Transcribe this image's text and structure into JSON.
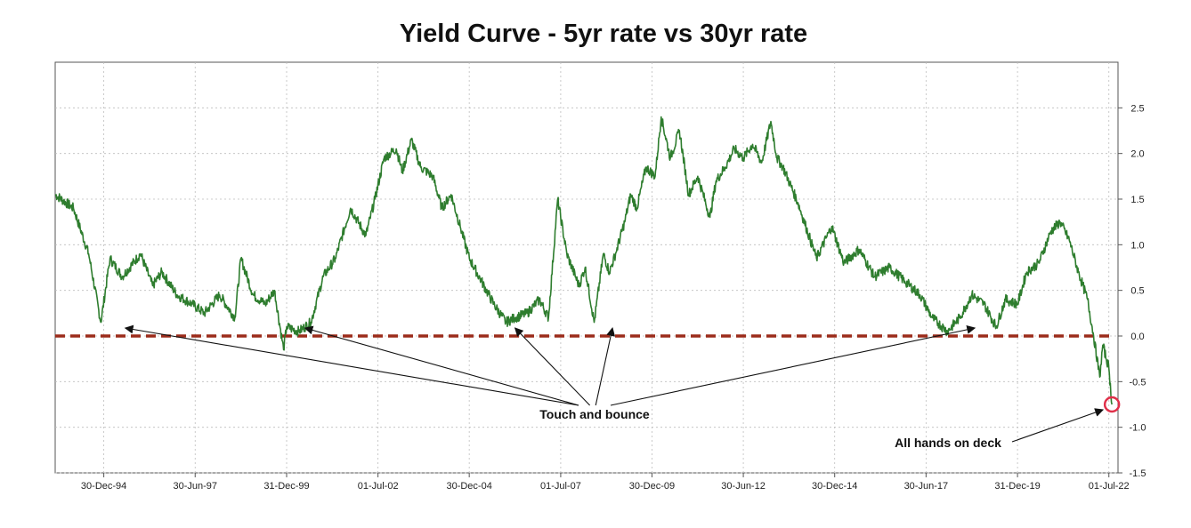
{
  "chart_data": {
    "type": "line",
    "title": "Yield Curve - 5yr rate vs 30yr rate",
    "xlabel": "",
    "ylabel": "",
    "x_ticks": [
      "30-Dec-94",
      "30-Jun-97",
      "31-Dec-99",
      "01-Jul-02",
      "30-Dec-04",
      "01-Jul-07",
      "30-Dec-09",
      "30-Jun-12",
      "30-Dec-14",
      "30-Jun-17",
      "31-Dec-19",
      "01-Jul-22"
    ],
    "y_ticks": [
      "2.5",
      "2.0",
      "1.5",
      "1.0",
      "0.5",
      "0.0",
      "-0.5",
      "-1.0",
      "-1.5"
    ],
    "ylim": [
      -1.5,
      3.0
    ],
    "grid": true,
    "series": [
      {
        "color": "#2e7d2e",
        "x": [
          "1993-09",
          "1994-03",
          "1994-08",
          "1994-12",
          "1995-03",
          "1995-07",
          "1996-01",
          "1996-05",
          "1996-08",
          "1997-01",
          "1997-06",
          "1997-10",
          "1998-03",
          "1998-08",
          "1998-10",
          "1999-02",
          "1999-06",
          "1999-09",
          "1999-12",
          "2000-01",
          "2000-05",
          "2000-09",
          "2001-01",
          "2001-05",
          "2001-10",
          "2002-03",
          "2002-06",
          "2002-09",
          "2003-01",
          "2003-03",
          "2003-06",
          "2003-09",
          "2004-01",
          "2004-04",
          "2004-07",
          "2004-10",
          "2005-01",
          "2005-05",
          "2005-09",
          "2006-01",
          "2006-04",
          "2006-08",
          "2006-12",
          "2007-03",
          "2007-06",
          "2007-09",
          "2008-01",
          "2008-03",
          "2008-06",
          "2008-09",
          "2008-11",
          "2009-01",
          "2009-04",
          "2009-06",
          "2009-08",
          "2009-11",
          "2010-02",
          "2010-04",
          "2010-07",
          "2010-10",
          "2011-01",
          "2011-04",
          "2011-08",
          "2011-10",
          "2012-01",
          "2012-04",
          "2012-07",
          "2012-10",
          "2013-01",
          "2013-04",
          "2013-06",
          "2013-08",
          "2014-01",
          "2014-07",
          "2014-12",
          "2015-04",
          "2015-09",
          "2016-02",
          "2016-07",
          "2016-12",
          "2017-05",
          "2017-09",
          "2018-02",
          "2018-06",
          "2018-10",
          "2019-02",
          "2019-06",
          "2019-09",
          "2020-01",
          "2020-04",
          "2020-08",
          "2020-12",
          "2021-03",
          "2021-06",
          "2021-09",
          "2021-12",
          "2022-02",
          "2022-04",
          "2022-05",
          "2022-07",
          "2022-08"
        ],
        "values": [
          1.55,
          1.4,
          0.9,
          0.15,
          0.85,
          0.65,
          0.9,
          0.55,
          0.7,
          0.45,
          0.35,
          0.25,
          0.45,
          0.2,
          0.85,
          0.45,
          0.35,
          0.5,
          -0.15,
          0.1,
          0.05,
          0.15,
          0.65,
          0.85,
          1.4,
          1.1,
          1.5,
          1.95,
          2.05,
          1.8,
          2.15,
          1.85,
          1.75,
          1.4,
          1.55,
          1.2,
          0.85,
          0.6,
          0.35,
          0.15,
          0.2,
          0.25,
          0.4,
          0.2,
          1.5,
          0.9,
          0.55,
          0.75,
          0.15,
          0.9,
          0.7,
          0.9,
          1.25,
          1.55,
          1.4,
          1.85,
          1.75,
          2.4,
          1.95,
          2.25,
          1.55,
          1.75,
          1.3,
          1.7,
          1.85,
          2.05,
          1.95,
          2.1,
          1.9,
          2.35,
          1.95,
          1.85,
          1.45,
          0.85,
          1.2,
          0.8,
          0.95,
          0.65,
          0.75,
          0.6,
          0.45,
          0.2,
          0.05,
          0.2,
          0.45,
          0.35,
          0.1,
          0.4,
          0.35,
          0.7,
          0.8,
          1.15,
          1.25,
          1.05,
          0.7,
          0.4,
          0.0,
          -0.45,
          -0.1,
          -0.35,
          -0.75
        ]
      },
      {
        "color": "#9b2b1a",
        "x": [
          "1993-09",
          "2022-08"
        ],
        "values": [
          0.0,
          0.0
        ]
      }
    ],
    "annotations": [
      {
        "text": "Touch and bounce",
        "targets": [
          "1995-08",
          "2000-07",
          "2006-04",
          "2008-12",
          "2018-11"
        ]
      },
      {
        "text": "All hands on deck",
        "targets": [
          "2022-08"
        ]
      }
    ],
    "marker": {
      "x": "2022-08",
      "value": -0.75,
      "color": "#e0304a"
    }
  }
}
